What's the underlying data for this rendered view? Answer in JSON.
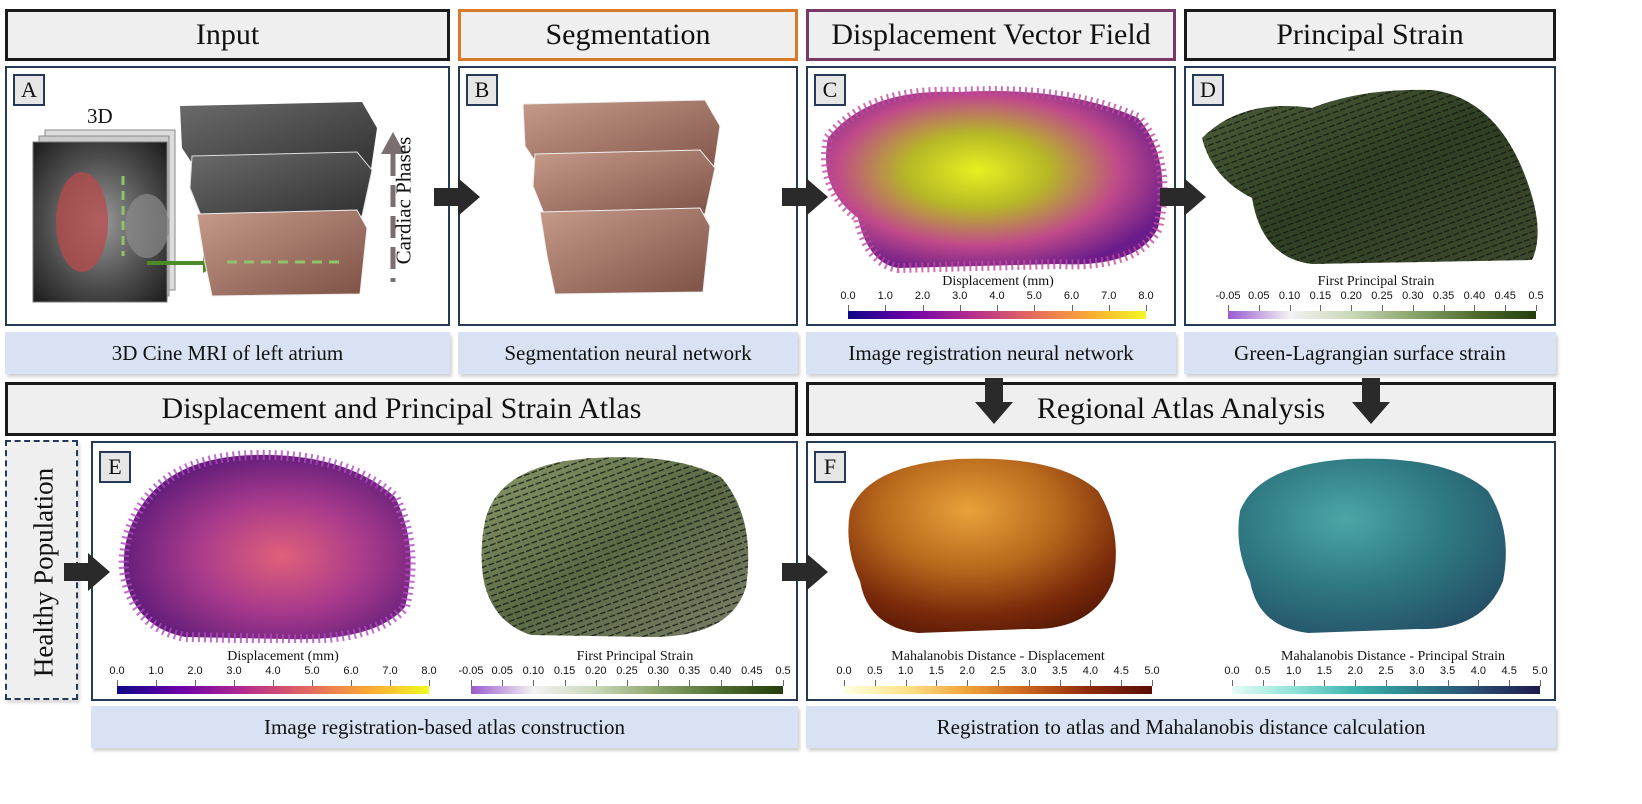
{
  "headers": {
    "input": "Input",
    "segmentation": "Segmentation",
    "displacement_field": "Displacement Vector Field",
    "principal_strain": "Principal Strain",
    "atlas": "Displacement and Principal Strain Atlas",
    "regional": "Regional Atlas Analysis"
  },
  "captions": {
    "input": "3D Cine MRI of left atrium",
    "segmentation": "Segmentation neural network",
    "registration": "Image registration neural network",
    "strain": "Green-Lagrangian surface strain",
    "atlas": "Image registration-based atlas construction",
    "regional": "Registration to atlas and Mahalanobis distance calculation"
  },
  "badges": {
    "a": "A",
    "b": "B",
    "c": "C",
    "d": "D",
    "e": "E",
    "f": "F"
  },
  "panel_a": {
    "label_3d": "3D",
    "cardiac_phases": "Cardiac Phases"
  },
  "side_label": "Healthy Population",
  "colorbars": {
    "displacement": {
      "title": "Displacement (mm)",
      "ticks": [
        "0.0",
        "1.0",
        "2.0",
        "3.0",
        "4.0",
        "5.0",
        "6.0",
        "7.0",
        "8.0"
      ],
      "colormap": [
        "#0d0887",
        "#6a00a8",
        "#b12a90",
        "#e16462",
        "#fca636",
        "#f0f921"
      ]
    },
    "strain": {
      "title": "First Principal Strain",
      "ticks": [
        "-0.05",
        "0.05",
        "0.10",
        "0.15",
        "0.20",
        "0.25",
        "0.30",
        "0.35",
        "0.40",
        "0.45",
        "0.5"
      ],
      "colormap": [
        "#9b59d0",
        "#f2f2f2",
        "#c9d8b8",
        "#8aa56b",
        "#4e6e2e",
        "#243d0c"
      ]
    },
    "maha_disp": {
      "title": "Mahalanobis Distance - Displacement",
      "ticks": [
        "0.0",
        "0.5",
        "1.0",
        "1.5",
        "2.0",
        "2.5",
        "3.0",
        "3.5",
        "4.0",
        "4.5",
        "5.0"
      ],
      "colormap": [
        "#ffffe0",
        "#fde38a",
        "#f0a23a",
        "#c9621d",
        "#8c2a0a",
        "#5a0c08"
      ]
    },
    "maha_strain": {
      "title": "Mahalanobis Distance - Principal Strain",
      "ticks": [
        "0.0",
        "0.5",
        "1.0",
        "1.5",
        "2.0",
        "2.5",
        "3.0",
        "3.5",
        "4.0",
        "4.5",
        "5.0"
      ],
      "colormap": [
        "#e6fbf8",
        "#8fe3d8",
        "#3fb3ad",
        "#2d7e8c",
        "#2a4b72",
        "#1c1c4a"
      ]
    }
  },
  "colors": {
    "header_border": "#1a1a1a",
    "segmentation_border": "#d97a2b",
    "displacement_border": "#7a3866",
    "caption_bg": "#d9e2f2",
    "panel_border": "#253a58"
  }
}
